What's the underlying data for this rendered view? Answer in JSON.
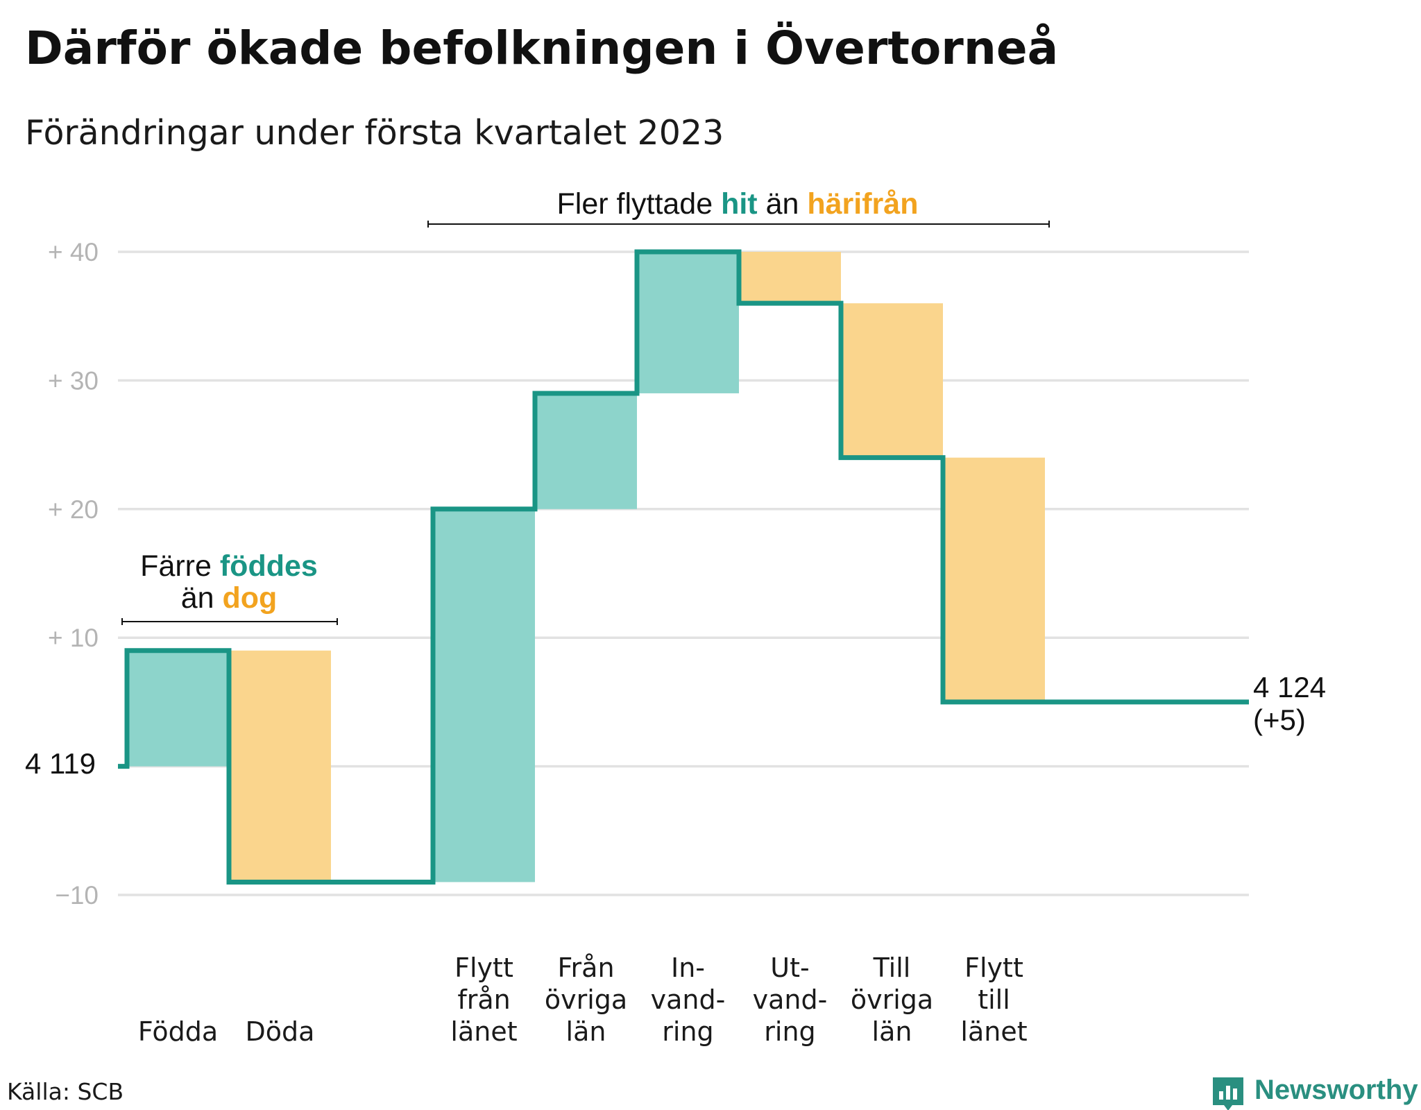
{
  "title": "Därför ökade befolkningen i Övertorneå",
  "subtitle": "Förändringar under första kvartalet 2023",
  "source": "Källa: SCB",
  "brand": "Newsworthy",
  "colors": {
    "increase": "#8dd4cb",
    "decrease": "#fad58d",
    "line": "#1a9585",
    "teal_text": "#1a9585",
    "orange_text": "#f2a31f",
    "grid": "#e2e2e2",
    "tick": "#b4b4b4"
  },
  "annotations": {
    "births": {
      "line1_plain": "Färre ",
      "line1_highlight": "föddes",
      "line2_plain": "än ",
      "line2_highlight": "dog"
    },
    "migration": {
      "part1": "Fler flyttade ",
      "part2": "hit",
      "part3": " än ",
      "part4": "härifrån"
    }
  },
  "start_label": "4 119",
  "end_label": {
    "line1": "4 124",
    "line2": "(+5)"
  },
  "chart_data": {
    "type": "waterfall",
    "baseline_population": 4119,
    "end_population": 4124,
    "net_change": 5,
    "y_ticks": [
      {
        "value": -10,
        "label": "−10"
      },
      {
        "value": 0,
        "label": ""
      },
      {
        "value": 10,
        "label": "+ 10"
      },
      {
        "value": 20,
        "label": "+ 20"
      },
      {
        "value": 30,
        "label": "+ 30"
      },
      {
        "value": 40,
        "label": "+ 40"
      }
    ],
    "ylim": [
      -10,
      40
    ],
    "grid": true,
    "steps": [
      {
        "label_lines": [
          "Födda"
        ],
        "change": 9,
        "type": "increase"
      },
      {
        "label_lines": [
          "Döda"
        ],
        "change": -18,
        "type": "decrease"
      },
      {
        "label_lines": [],
        "change": 0,
        "type": "gap"
      },
      {
        "label_lines": [
          "Flytt",
          "från",
          "länet"
        ],
        "change": 29,
        "type": "increase"
      },
      {
        "label_lines": [
          "Från",
          "övriga",
          "län"
        ],
        "change": 9,
        "type": "increase"
      },
      {
        "label_lines": [
          "In-",
          "vand-",
          "ring"
        ],
        "change": 11,
        "type": "increase"
      },
      {
        "label_lines": [
          "Ut-",
          "vand-",
          "ring"
        ],
        "change": -4,
        "type": "decrease"
      },
      {
        "label_lines": [
          "Till",
          "övriga",
          "län"
        ],
        "change": -12,
        "type": "decrease"
      },
      {
        "label_lines": [
          "Flytt",
          "till",
          "länet"
        ],
        "change": -19,
        "type": "decrease"
      }
    ]
  }
}
